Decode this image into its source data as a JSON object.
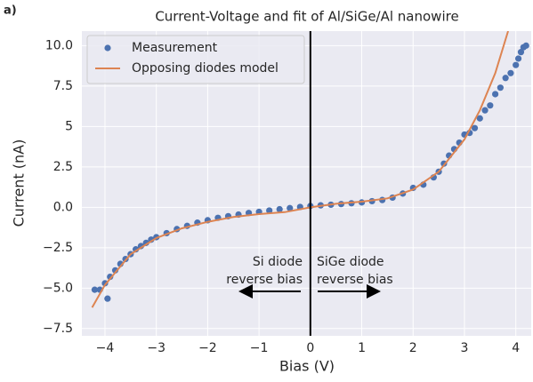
{
  "chart_data": {
    "type": "scatter",
    "panel_label": "a)",
    "title": "Current-Voltage and fit of Al/SiGe/Al nanowire",
    "xlabel": "Bias (V)",
    "ylabel": "Current (nA)",
    "xlim": [
      -4.45,
      4.3
    ],
    "ylim": [
      -7.95,
      10.9
    ],
    "xticks": [
      {
        "value": -4,
        "label": "−4"
      },
      {
        "value": -3,
        "label": "−3"
      },
      {
        "value": -2,
        "label": "−2"
      },
      {
        "value": -1,
        "label": "−1"
      },
      0,
      1,
      2,
      3,
      4
    ],
    "yticks": [
      {
        "value": -7.5,
        "label": "−7.5"
      },
      {
        "value": -5,
        "label": "−5.0"
      },
      {
        "value": -2.5,
        "label": "−2.5"
      },
      {
        "value": 0,
        "label": "0.0"
      },
      2.5,
      5,
      7.5,
      {
        "value": 10,
        "label": "10.0"
      }
    ],
    "grid": true,
    "legend": "upper left",
    "vline": 0,
    "series": [
      {
        "name": "Measurement",
        "type": "scatter",
        "color": "#4c72b0",
        "x": [
          -4.2,
          -4.1,
          -4.0,
          -3.95,
          -3.9,
          -3.8,
          -3.7,
          -3.6,
          -3.5,
          -3.4,
          -3.3,
          -3.2,
          -3.1,
          -3.0,
          -2.8,
          -2.6,
          -2.4,
          -2.2,
          -2.0,
          -1.8,
          -1.6,
          -1.4,
          -1.2,
          -1.0,
          -0.8,
          -0.6,
          -0.4,
          -0.2,
          0.0,
          0.2,
          0.4,
          0.6,
          0.8,
          1.0,
          1.2,
          1.4,
          1.6,
          1.8,
          2.0,
          2.2,
          2.4,
          2.5,
          2.6,
          2.7,
          2.8,
          2.9,
          3.0,
          3.1,
          3.2,
          3.3,
          3.4,
          3.5,
          3.6,
          3.7,
          3.8,
          3.9,
          4.0,
          4.05,
          4.1,
          4.15,
          4.2
        ],
        "values": [
          -5.1,
          -5.1,
          -4.7,
          -5.65,
          -4.3,
          -3.9,
          -3.5,
          -3.2,
          -2.9,
          -2.6,
          -2.4,
          -2.2,
          -2.0,
          -1.85,
          -1.6,
          -1.35,
          -1.15,
          -0.95,
          -0.8,
          -0.65,
          -0.55,
          -0.45,
          -0.35,
          -0.28,
          -0.2,
          -0.12,
          -0.05,
          0.02,
          0.08,
          0.12,
          0.16,
          0.2,
          0.25,
          0.3,
          0.38,
          0.45,
          0.6,
          0.85,
          1.2,
          1.4,
          1.85,
          2.2,
          2.7,
          3.2,
          3.6,
          4.0,
          4.5,
          4.6,
          4.9,
          5.5,
          6.0,
          6.3,
          7.0,
          7.4,
          8.0,
          8.3,
          8.8,
          9.2,
          9.6,
          9.9,
          10.0
        ]
      },
      {
        "name": "Opposing diodes model",
        "type": "line",
        "color": "#dd8452",
        "x": [
          -4.25,
          -4.0,
          -3.5,
          -3.0,
          -2.5,
          -2.0,
          -1.5,
          -1.0,
          -0.5,
          0.0,
          0.5,
          1.0,
          1.5,
          2.0,
          2.5,
          3.0,
          3.3,
          3.6,
          3.85
        ],
        "values": [
          -6.2,
          -4.8,
          -2.9,
          -1.9,
          -1.3,
          -0.9,
          -0.6,
          -0.42,
          -0.3,
          0.0,
          0.22,
          0.35,
          0.55,
          1.1,
          2.2,
          4.2,
          6.0,
          8.3,
          10.9
        ]
      }
    ],
    "annotations": [
      {
        "lines": [
          "Si diode",
          "reverse bias"
        ]
      },
      {
        "lines": [
          "SiGe diode",
          "reverse bias"
        ]
      }
    ]
  }
}
